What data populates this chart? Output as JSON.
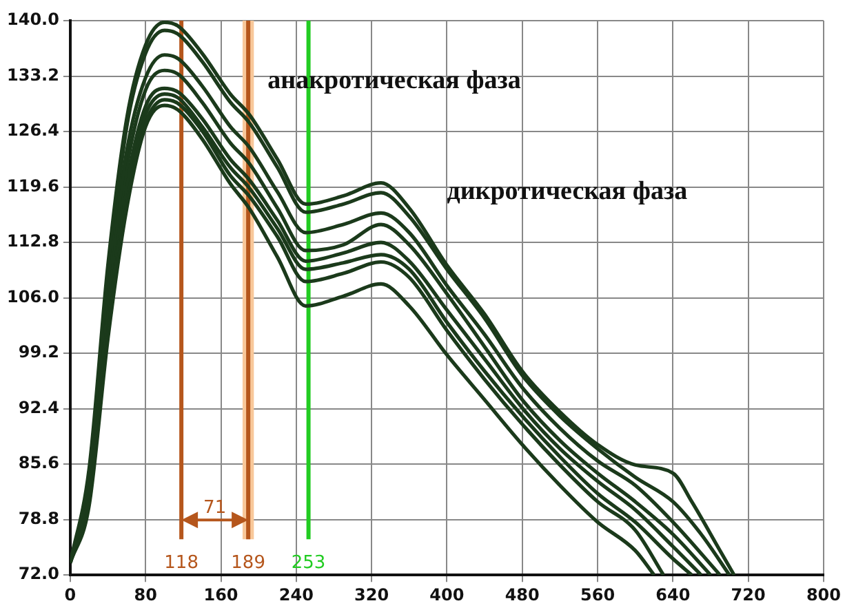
{
  "chart_data": {
    "type": "line",
    "xlim": [
      0,
      800
    ],
    "ylim": [
      72,
      140
    ],
    "xticks": [
      0,
      80,
      160,
      240,
      320,
      400,
      480,
      560,
      640,
      720,
      800
    ],
    "yticks": [
      {
        "value": 72,
        "label": "72.0"
      },
      {
        "value": 78.8,
        "label": "78.8"
      },
      {
        "value": 85.6,
        "label": "85.6"
      },
      {
        "value": 92.4,
        "label": "92.4"
      },
      {
        "value": 99.2,
        "label": "99.2"
      },
      {
        "value": 106,
        "label": "106.0"
      },
      {
        "value": 112.8,
        "label": "112.8"
      },
      {
        "value": 119.6,
        "label": "119.6"
      },
      {
        "value": 126.4,
        "label": "126.4"
      },
      {
        "value": 133.2,
        "label": "133.2"
      },
      {
        "value": 140,
        "label": "140.0"
      }
    ],
    "grid": true,
    "legend": false,
    "marker": "none",
    "line_style": "solid",
    "series": [
      {
        "color": "#1b3a1b",
        "x": [
          0,
          20,
          40,
          60,
          80,
          100,
          115,
          140,
          170,
          190,
          220,
          250,
          290,
          330,
          360,
          400,
          440,
          480,
          520,
          560,
          600,
          640,
          660,
          690,
          705
        ],
        "values": [
          73.5,
          85,
          110,
          128,
          137,
          139.8,
          139.3,
          136,
          131,
          128.5,
          123,
          117.5,
          118.5,
          120.1,
          117,
          110,
          104,
          97,
          92,
          88,
          85.5,
          84.5,
          81,
          75,
          72
        ]
      },
      {
        "color": "#1b3a1b",
        "x": [
          0,
          20,
          40,
          60,
          80,
          100,
          115,
          140,
          170,
          190,
          220,
          250,
          290,
          330,
          360,
          400,
          440,
          480,
          520,
          560,
          600,
          640,
          670,
          700
        ],
        "values": [
          73.5,
          84,
          108,
          127,
          136,
          138.8,
          138.3,
          135,
          130,
          127.5,
          122,
          116.5,
          117.5,
          118.9,
          116,
          109.5,
          103.5,
          96.5,
          91.5,
          87.5,
          84,
          81,
          77,
          72
        ]
      },
      {
        "color": "#1b3a1b",
        "x": [
          0,
          20,
          40,
          60,
          80,
          100,
          115,
          140,
          170,
          190,
          220,
          250,
          290,
          330,
          360,
          400,
          440,
          480,
          520,
          560,
          600,
          640,
          690
        ],
        "values": [
          73.5,
          83,
          106,
          124,
          133,
          135.8,
          135.3,
          132,
          127,
          124.5,
          119,
          114,
          115,
          116.4,
          114,
          107.5,
          101.5,
          95,
          90,
          86,
          83,
          78.5,
          72
        ]
      },
      {
        "color": "#1b3a1b",
        "x": [
          0,
          20,
          40,
          60,
          80,
          100,
          115,
          140,
          170,
          190,
          220,
          250,
          290,
          330,
          360,
          400,
          440,
          480,
          520,
          560,
          600,
          640,
          680
        ],
        "values": [
          73.5,
          82.5,
          105,
          122,
          131.5,
          133.9,
          133.4,
          130,
          125,
          122.5,
          117,
          111.8,
          112.5,
          115,
          112.5,
          106.5,
          100,
          93.5,
          88.5,
          84.5,
          81,
          77,
          72
        ]
      },
      {
        "color": "#1b3a1b",
        "x": [
          0,
          20,
          40,
          60,
          80,
          100,
          115,
          140,
          170,
          190,
          220,
          250,
          290,
          330,
          360,
          400,
          440,
          480,
          520,
          560,
          600,
          640,
          670
        ],
        "values": [
          73.5,
          82,
          104,
          120,
          129.5,
          131.7,
          131.2,
          128,
          123,
          120.5,
          115.5,
          110.5,
          111.5,
          112.8,
          110.5,
          104.5,
          98.5,
          92.5,
          87.5,
          83.5,
          80,
          75.5,
          72
        ]
      },
      {
        "color": "#1b3a1b",
        "x": [
          0,
          20,
          40,
          60,
          80,
          100,
          115,
          140,
          170,
          190,
          220,
          250,
          290,
          330,
          360,
          400,
          440,
          480,
          520,
          560,
          600,
          640,
          660
        ],
        "values": [
          73.5,
          81.5,
          103,
          119,
          128.5,
          131,
          130.5,
          127,
          122,
          119.5,
          114.5,
          109.5,
          110.3,
          111.3,
          109.5,
          103,
          97,
          91.5,
          86.5,
          82,
          78.5,
          74,
          72
        ]
      },
      {
        "color": "#1b3a1b",
        "x": [
          0,
          20,
          40,
          60,
          80,
          100,
          115,
          140,
          170,
          190,
          220,
          250,
          290,
          330,
          360,
          400,
          440,
          480,
          520,
          560,
          600,
          630
        ],
        "values": [
          73.5,
          81,
          102,
          118,
          127.5,
          130.3,
          129.8,
          126.5,
          121,
          118.5,
          113.5,
          108,
          109,
          110.4,
          108.5,
          102,
          96,
          90.5,
          85.5,
          81,
          77.5,
          72
        ]
      },
      {
        "color": "#1b3a1b",
        "x": [
          0,
          20,
          40,
          60,
          80,
          100,
          115,
          140,
          170,
          190,
          220,
          250,
          290,
          330,
          360,
          400,
          440,
          480,
          520,
          560,
          600,
          620
        ],
        "values": [
          73.5,
          80.5,
          101,
          117,
          127,
          129.6,
          129,
          125.5,
          120,
          117,
          111,
          105,
          106.2,
          107.7,
          105,
          99,
          93.5,
          88,
          83,
          78.5,
          75,
          72
        ]
      }
    ],
    "bands": [
      {
        "axis": "x",
        "from": 183,
        "to": 195,
        "color": "#f8c89a"
      }
    ],
    "ref_lines": [
      {
        "axis": "x",
        "value": 118,
        "label": "118",
        "color": "#b5561c"
      },
      {
        "axis": "x",
        "value": 189,
        "label": "189",
        "color": "#b5561c"
      },
      {
        "axis": "x",
        "value": 253,
        "label": "253",
        "color": "#22cc22"
      }
    ],
    "annotations": [
      "анакротическая фаза",
      "дикротическая фаза",
      "71"
    ]
  }
}
